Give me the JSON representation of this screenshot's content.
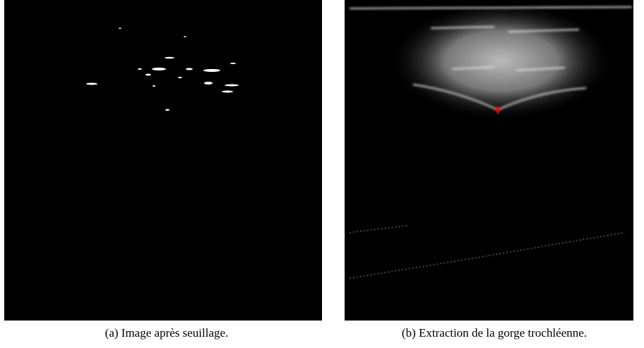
{
  "figure": {
    "subfigures": [
      {
        "caption": "(a) Image après seuillage."
      },
      {
        "caption": "(b) Extraction de la gorge trochléenne."
      }
    ]
  }
}
